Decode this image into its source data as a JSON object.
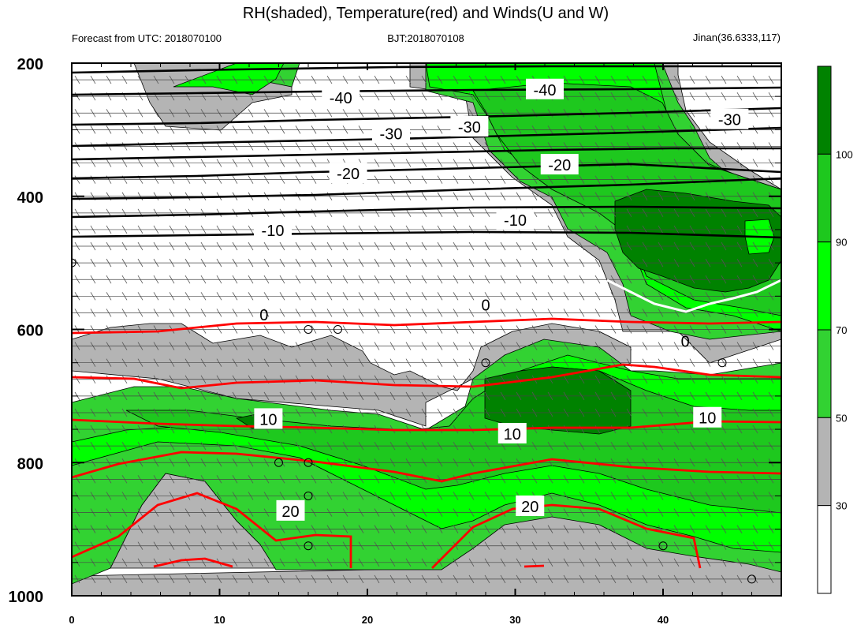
{
  "header": {
    "title": "RH(shaded), Temperature(red) and Winds(U and W)",
    "left": "Forecast from UTC: 2018070100",
    "center": "BJT:2018070108",
    "right": "Jinan(36.6333,117)"
  },
  "chart_data": {
    "type": "heatmap",
    "title": "RH(shaded), Temperature(red) and Winds(U and W)",
    "xlabel": "",
    "ylabel": "",
    "xlim": [
      0,
      48
    ],
    "ylim": [
      1000,
      200
    ],
    "x_ticks": [
      0,
      10,
      20,
      30,
      40
    ],
    "y_ticks": [
      200,
      400,
      600,
      800,
      1000
    ],
    "rh_levels": [
      30,
      50,
      70,
      90,
      100
    ],
    "rh_colors": [
      "#ffffff",
      "#b4b4b4",
      "#32d232",
      "#00ff00",
      "#1ec81e",
      "#008200"
    ],
    "colorbar_labels": [
      "30",
      "50",
      "70",
      "90",
      "100"
    ],
    "temperature_labels": [
      {
        "text": "-40",
        "x": 18.2,
        "y": 252,
        "color": "#000000"
      },
      {
        "text": "-40",
        "x": 32.0,
        "y": 240,
        "color": "#000000"
      },
      {
        "text": "-30",
        "x": 21.6,
        "y": 306,
        "color": "#000000"
      },
      {
        "text": "-30",
        "x": 26.9,
        "y": 296,
        "color": "#000000"
      },
      {
        "text": "-30",
        "x": 44.5,
        "y": 285,
        "color": "#000000"
      },
      {
        "text": "-20",
        "x": 18.7,
        "y": 366,
        "color": "#000000"
      },
      {
        "text": "-20",
        "x": 33.0,
        "y": 353,
        "color": "#000000"
      },
      {
        "text": "-10",
        "x": 13.6,
        "y": 451,
        "color": "#000000"
      },
      {
        "text": "-10",
        "x": 30.0,
        "y": 436,
        "color": "#000000"
      },
      {
        "text": "0",
        "x": 13.0,
        "y": 578,
        "color": "#000000"
      },
      {
        "text": "0",
        "x": 28.0,
        "y": 563,
        "color": "#000000"
      },
      {
        "text": "0",
        "x": 41.5,
        "y": 618,
        "color": "#000000"
      },
      {
        "text": "10",
        "x": 13.3,
        "y": 735,
        "color": "#000000"
      },
      {
        "text": "10",
        "x": 29.8,
        "y": 757,
        "color": "#000000"
      },
      {
        "text": "10",
        "x": 43.0,
        "y": 733,
        "color": "#000000"
      },
      {
        "text": "20",
        "x": 14.8,
        "y": 873,
        "color": "#000000"
      },
      {
        "text": "20",
        "x": 31.0,
        "y": 866,
        "color": "#000000"
      }
    ],
    "freezing_level": {
      "label": "0",
      "color": "#ffffff"
    },
    "temperature_line_color": "#ff0000",
    "calm_markers": [
      {
        "x": 0.0,
        "y": 500
      },
      {
        "x": 16.0,
        "y": 600
      },
      {
        "x": 18.0,
        "y": 600
      },
      {
        "x": 28.0,
        "y": 650
      },
      {
        "x": 44.0,
        "y": 650
      },
      {
        "x": 14.0,
        "y": 800
      },
      {
        "x": 16.0,
        "y": 800
      },
      {
        "x": 16.0,
        "y": 850
      },
      {
        "x": 16.0,
        "y": 925
      },
      {
        "x": 40.0,
        "y": 925
      },
      {
        "x": 46.0,
        "y": 975
      }
    ]
  }
}
